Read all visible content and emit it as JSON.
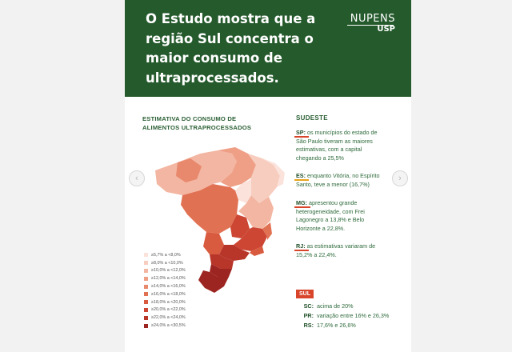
{
  "header": {
    "headline_lines": [
      "O Estudo mostra que a",
      "região Sul concentra o",
      "maior consumo de",
      "ultraprocessados."
    ],
    "logo_main": "NUPENS",
    "logo_sub": "USP",
    "background": "#255a2c"
  },
  "map": {
    "title_lines": [
      "ESTIMATIVA DO CONSUMO DE",
      "ALIMENTOS ULTRAPROCESSADOS"
    ],
    "legend": [
      {
        "label": "≥5,7% a <8,0%",
        "color": "#fbe3dc"
      },
      {
        "label": "≥8,0% a <10,0%",
        "color": "#f7cdbf"
      },
      {
        "label": "≥10,0% a <12,0%",
        "color": "#f3b6a2"
      },
      {
        "label": "≥12,0% a <14,0%",
        "color": "#ee9f86"
      },
      {
        "label": "≥14,0% a <16,0%",
        "color": "#e8886c"
      },
      {
        "label": "≥16,0% a <18,0%",
        "color": "#e17153"
      },
      {
        "label": "≥18,0% a <20,0%",
        "color": "#d95b3f"
      },
      {
        "label": "≥20,0% a <22,0%",
        "color": "#cc4633"
      },
      {
        "label": "≥22,0% a <24,0%",
        "color": "#b8352a"
      },
      {
        "label": "≥24,0% a <30,5%",
        "color": "#9c2521"
      }
    ]
  },
  "sudeste": {
    "title": "SUDESTE",
    "entries": [
      {
        "code": "SP:",
        "lines": [
          " os municípios do estado de",
          "São Paulo tiveram as maiores",
          "estimativas, com a capital",
          "chegando a 25,5%"
        ]
      },
      {
        "code": "ES:",
        "lines": [
          " enquanto Vitória, no Espírito",
          "Santo, teve a menor (16,7%)"
        ]
      },
      {
        "code": "MG:",
        "lines": [
          " apresentou grande",
          "heterogeneidade, com Frei",
          "Lagonegro a 13,8% e Belo",
          "Horizonte a 22,8%."
        ]
      },
      {
        "code": "RJ:",
        "lines": [
          " as estimativas variaram de",
          "15,2% a 22,4%."
        ]
      }
    ]
  },
  "sul": {
    "badge": "SUL",
    "rows": [
      {
        "code": "SC:",
        "text": "acima de 20%"
      },
      {
        "code": "PR:",
        "text": "variação entre 16% e 26,3%"
      },
      {
        "code": "RS:",
        "text": "17,6% e 26,6%"
      }
    ]
  },
  "carousel": {
    "prev_icon": "chevron-left-icon",
    "next_icon": "chevron-right-icon"
  },
  "colors": {
    "accent": "#d8452b",
    "brand_green": "#255a2c",
    "underline_es": "#e8a41b"
  }
}
